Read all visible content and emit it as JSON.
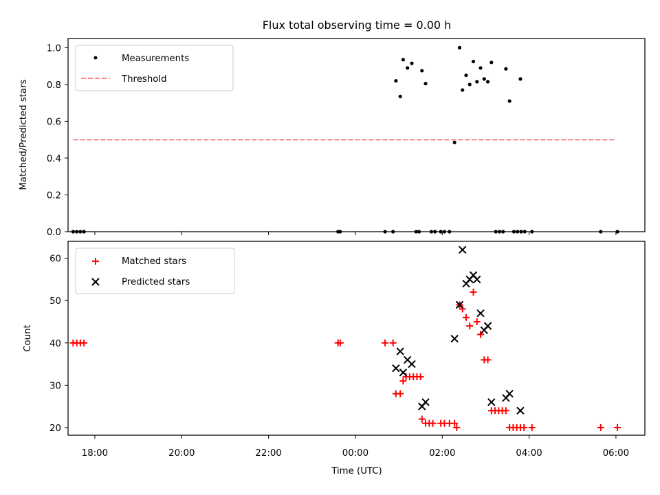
{
  "title": "Flux total observing time = 0.00 h",
  "xlabel": "Time (UTC)",
  "colors": {
    "matched": "#ff0000",
    "predicted": "#000000",
    "threshold": "#ff7f7f",
    "measurement": "#000000"
  },
  "chart_data": [
    {
      "type": "scatter",
      "title": "Flux total observing time = 0.00 h",
      "xlabel": "",
      "ylabel": "Matched/Predicted stars",
      "ylim": [
        0,
        1.05
      ],
      "xlim": [
        "17:23",
        "06:40"
      ],
      "yticks": [
        0.0,
        0.2,
        0.4,
        0.6,
        0.8,
        1.0
      ],
      "ytick_labels": [
        "0.0",
        "0.2",
        "0.4",
        "0.6",
        "0.8",
        "1.0"
      ],
      "grid": false,
      "legend": {
        "position": "upper-left",
        "entries": [
          "Measurements",
          "Threshold"
        ]
      },
      "series": [
        {
          "name": "Measurements",
          "marker": "dot",
          "points": [
            [
              "17:30",
              0
            ],
            [
              "17:35",
              0
            ],
            [
              "17:40",
              0
            ],
            [
              "17:45",
              0
            ],
            [
              "23:36",
              0
            ],
            [
              "23:39",
              0
            ],
            [
              "00:41",
              0
            ],
            [
              "00:52",
              0
            ],
            [
              "00:56",
              0.82
            ],
            [
              "01:02",
              0.735
            ],
            [
              "01:06",
              0.935
            ],
            [
              "01:12",
              0.89
            ],
            [
              "01:18",
              0.915
            ],
            [
              "01:24",
              0
            ],
            [
              "01:28",
              0
            ],
            [
              "01:32",
              0.875
            ],
            [
              "01:37",
              0.805
            ],
            [
              "01:45",
              0
            ],
            [
              "01:50",
              0
            ],
            [
              "01:58",
              0
            ],
            [
              "02:03",
              0
            ],
            [
              "02:10",
              0
            ],
            [
              "02:17",
              0.485
            ],
            [
              "02:24",
              1.0
            ],
            [
              "02:28",
              0.77
            ],
            [
              "02:33",
              0.85
            ],
            [
              "02:38",
              0.8
            ],
            [
              "02:43",
              0.925
            ],
            [
              "02:48",
              0.815
            ],
            [
              "02:53",
              0.89
            ],
            [
              "02:58",
              0.83
            ],
            [
              "03:03",
              0.815
            ],
            [
              "03:08",
              0.92
            ],
            [
              "03:14",
              0
            ],
            [
              "03:19",
              0
            ],
            [
              "03:24",
              0
            ],
            [
              "03:28",
              0.885
            ],
            [
              "03:33",
              0.71
            ],
            [
              "03:39",
              0
            ],
            [
              "03:44",
              0
            ],
            [
              "03:49",
              0
            ],
            [
              "03:54",
              0
            ],
            [
              "03:48",
              0.83
            ],
            [
              "04:04",
              0
            ],
            [
              "05:39",
              0
            ],
            [
              "06:02",
              0
            ]
          ]
        },
        {
          "name": "Threshold",
          "marker": "dashed-line",
          "x": [
            "17:30",
            "06:00"
          ],
          "y": [
            0.5,
            0.5
          ]
        }
      ]
    },
    {
      "type": "scatter",
      "xlabel": "Time (UTC)",
      "ylabel": "Count",
      "ylim": [
        18.2,
        64
      ],
      "xlim": [
        "17:23",
        "06:40"
      ],
      "yticks": [
        20,
        30,
        40,
        50,
        60
      ],
      "ytick_labels": [
        "20",
        "30",
        "40",
        "50",
        "60"
      ],
      "xticks": [
        "18:00",
        "20:00",
        "22:00",
        "00:00",
        "02:00",
        "04:00",
        "06:00"
      ],
      "xtick_labels": [
        "18:00",
        "20:00",
        "22:00",
        "00:00",
        "02:00",
        "04:00",
        "06:00"
      ],
      "grid": false,
      "legend": {
        "position": "upper-left",
        "entries": [
          "Matched stars",
          "Predicted stars"
        ]
      },
      "series": [
        {
          "name": "Matched stars",
          "marker": "plus",
          "points": [
            [
              "17:30",
              40
            ],
            [
              "17:35",
              40
            ],
            [
              "17:40",
              40
            ],
            [
              "17:45",
              40
            ],
            [
              "23:36",
              40
            ],
            [
              "23:39",
              40
            ],
            [
              "00:41",
              40
            ],
            [
              "00:52",
              40
            ],
            [
              "00:56",
              28
            ],
            [
              "01:02",
              28
            ],
            [
              "01:06",
              31
            ],
            [
              "01:10",
              32
            ],
            [
              "01:15",
              32
            ],
            [
              "01:20",
              32
            ],
            [
              "01:25",
              32
            ],
            [
              "01:30",
              32
            ],
            [
              "01:32",
              22
            ],
            [
              "01:37",
              21
            ],
            [
              "01:42",
              21
            ],
            [
              "01:47",
              21
            ],
            [
              "01:58",
              21
            ],
            [
              "02:03",
              21
            ],
            [
              "02:10",
              21
            ],
            [
              "02:17",
              21
            ],
            [
              "02:20",
              20
            ],
            [
              "02:24",
              49
            ],
            [
              "02:28",
              48
            ],
            [
              "02:33",
              46
            ],
            [
              "02:38",
              44
            ],
            [
              "02:43",
              52
            ],
            [
              "02:48",
              45
            ],
            [
              "02:53",
              42
            ],
            [
              "02:58",
              36
            ],
            [
              "03:03",
              36
            ],
            [
              "03:08",
              24
            ],
            [
              "03:13",
              24
            ],
            [
              "03:18",
              24
            ],
            [
              "03:23",
              24
            ],
            [
              "03:28",
              24
            ],
            [
              "03:33",
              20
            ],
            [
              "03:38",
              20
            ],
            [
              "03:43",
              20
            ],
            [
              "03:48",
              20
            ],
            [
              "03:53",
              20
            ],
            [
              "04:04",
              20
            ],
            [
              "05:39",
              20
            ],
            [
              "06:02",
              20
            ]
          ]
        },
        {
          "name": "Predicted stars",
          "marker": "x",
          "points": [
            [
              "00:56",
              34
            ],
            [
              "01:02",
              38
            ],
            [
              "01:06",
              33
            ],
            [
              "01:12",
              36
            ],
            [
              "01:18",
              35
            ],
            [
              "01:32",
              25
            ],
            [
              "01:37",
              26
            ],
            [
              "02:17",
              41
            ],
            [
              "02:24",
              49
            ],
            [
              "02:28",
              62
            ],
            [
              "02:33",
              54
            ],
            [
              "02:38",
              55
            ],
            [
              "02:43",
              56
            ],
            [
              "02:48",
              55
            ],
            [
              "02:53",
              47
            ],
            [
              "02:58",
              43
            ],
            [
              "03:03",
              44
            ],
            [
              "03:08",
              26
            ],
            [
              "03:28",
              27
            ],
            [
              "03:33",
              28
            ],
            [
              "03:48",
              24
            ]
          ]
        }
      ]
    }
  ]
}
